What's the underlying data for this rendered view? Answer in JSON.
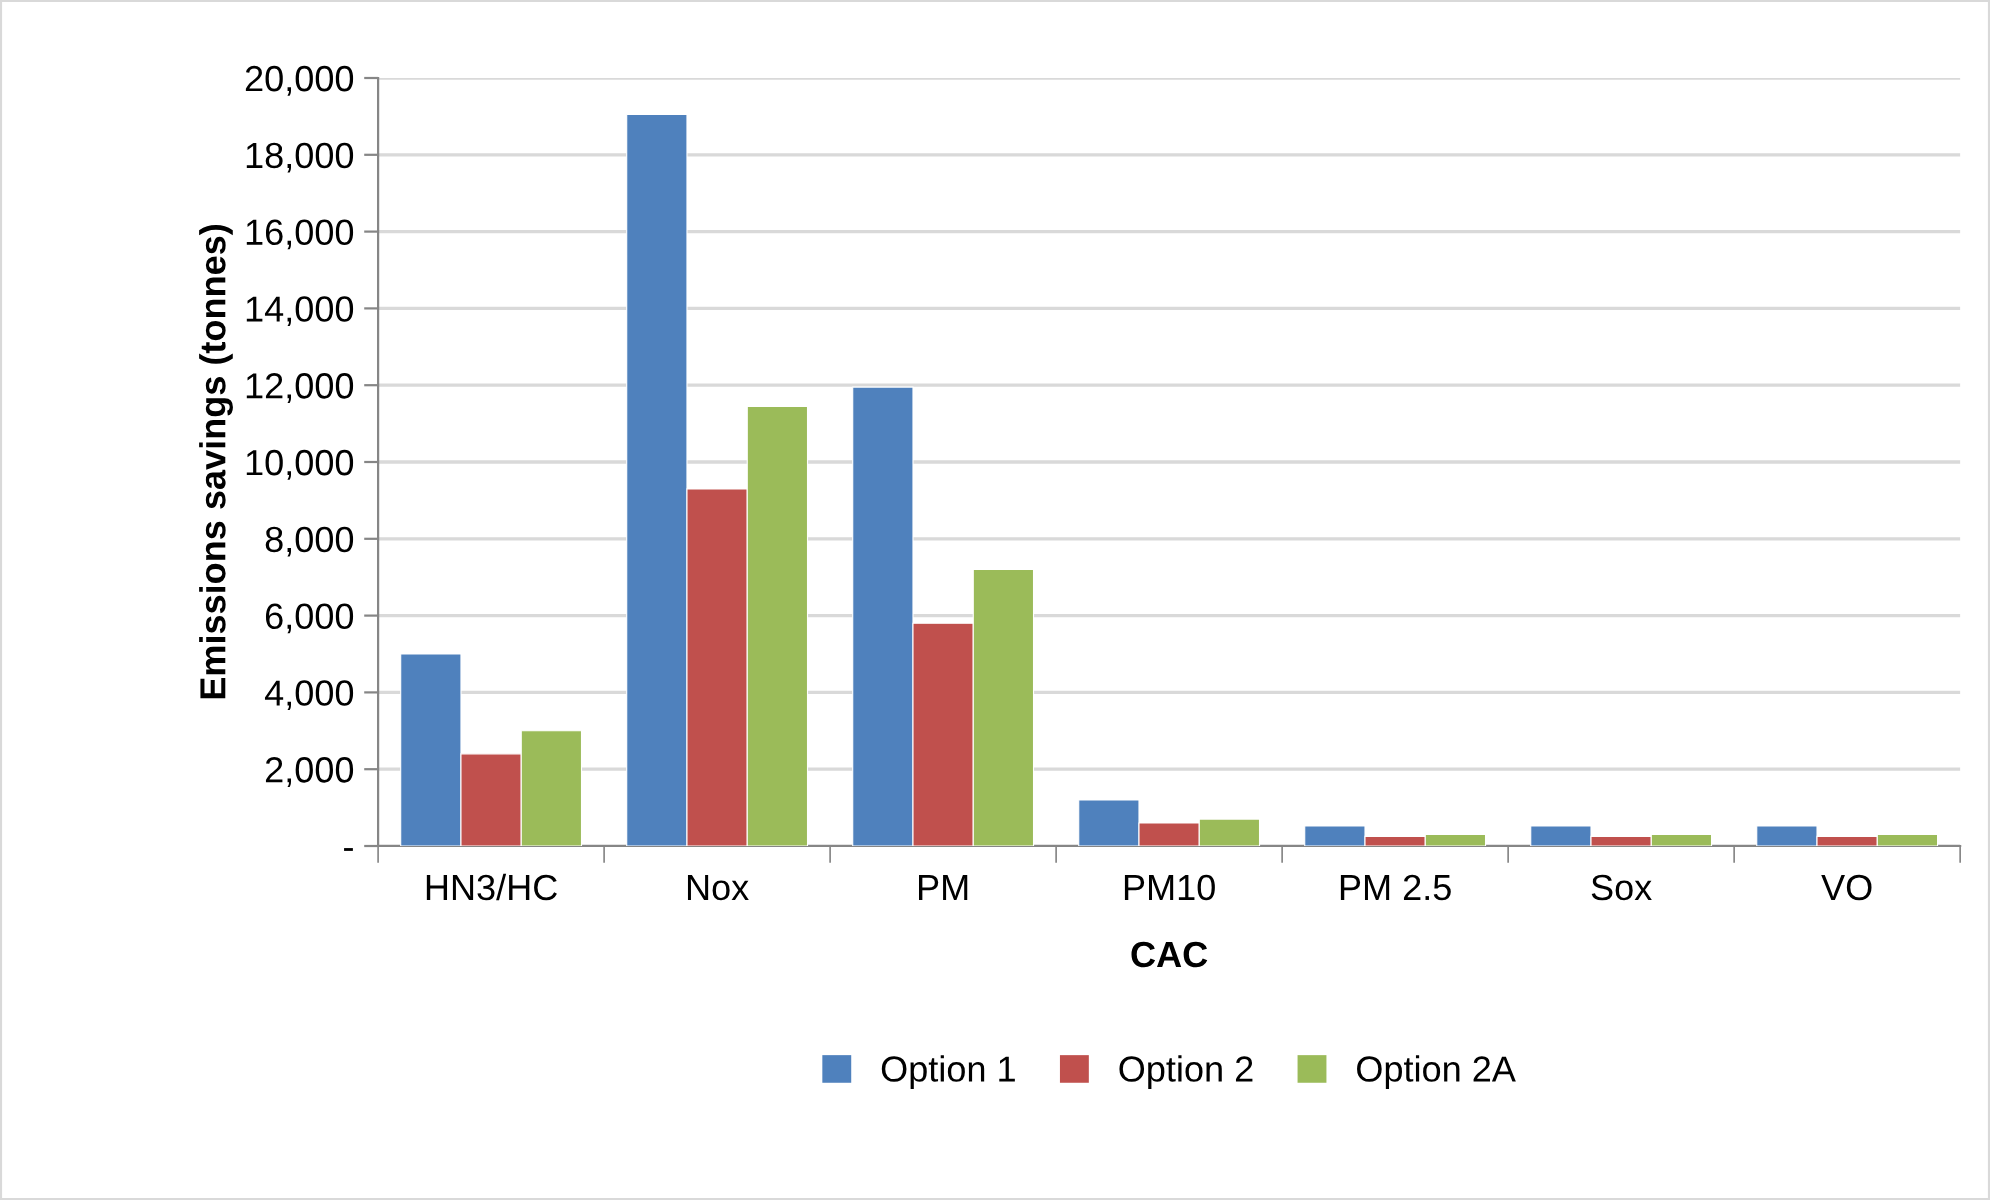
{
  "chart_data": {
    "type": "bar",
    "xlabel": "CAC",
    "ylabel": "Emissions savings (tonnes)",
    "categories": [
      "HN3/HC",
      "Nox",
      "PM",
      "PM10",
      "PM 2.5",
      "Sox",
      "VO"
    ],
    "series": [
      {
        "name": "Option 1",
        "color": "#4f81bd",
        "values": [
          5000,
          19050,
          11950,
          1200,
          520,
          520,
          520
        ]
      },
      {
        "name": "Option 2",
        "color": "#c0504d",
        "values": [
          2400,
          9300,
          5800,
          600,
          250,
          250,
          250
        ]
      },
      {
        "name": "Option 2A",
        "color": "#9bbb59",
        "values": [
          3000,
          11450,
          7200,
          700,
          300,
          300,
          300
        ]
      }
    ],
    "ylim": [
      0,
      20000
    ],
    "yticks": [
      {
        "value": 0,
        "label": "-"
      },
      {
        "value": 2000,
        "label": "2,000"
      },
      {
        "value": 4000,
        "label": "4,000"
      },
      {
        "value": 6000,
        "label": "6,000"
      },
      {
        "value": 8000,
        "label": "8,000"
      },
      {
        "value": 10000,
        "label": "10,000"
      },
      {
        "value": 12000,
        "label": "12,000"
      },
      {
        "value": 14000,
        "label": "14,000"
      },
      {
        "value": 16000,
        "label": "16,000"
      },
      {
        "value": 18000,
        "label": "18,000"
      },
      {
        "value": 20000,
        "label": "20,000"
      }
    ],
    "grid": "y",
    "legend": "bottom"
  }
}
